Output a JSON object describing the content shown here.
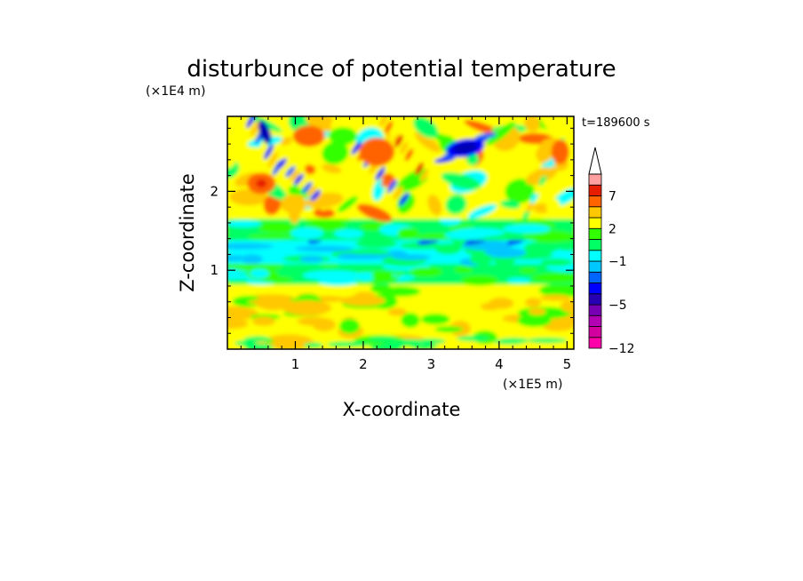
{
  "chart_data": {
    "type": "heatmap",
    "title": "disturbunce of potential temperature",
    "time_label": "t=189600 s",
    "xlabel": "X-coordinate",
    "ylabel": "Z-coordinate",
    "x_unit": "(×1E5 m)",
    "y_unit": "(×1E4 m)",
    "xlim": [
      0,
      5.1
    ],
    "ylim": [
      0,
      2.95
    ],
    "x_ticks": [
      "1",
      "2",
      "3",
      "4",
      "5"
    ],
    "x_tick_values": [
      1,
      2,
      3,
      4,
      5
    ],
    "y_ticks": [
      "1",
      "2"
    ],
    "y_tick_values": [
      1,
      2
    ],
    "colorbar": {
      "tick_labels": [
        "7",
        "2",
        "−1",
        "−5",
        "−12"
      ],
      "tick_values": [
        7,
        2,
        -1,
        -5,
        -12
      ],
      "levels": [
        -12,
        -10,
        -8,
        -6,
        -5,
        -4,
        -3,
        -2,
        -1,
        0,
        1,
        2,
        3,
        5,
        7,
        9,
        11
      ],
      "colors": [
        "#ff00a8",
        "#d2009e",
        "#b400b4",
        "#7800b4",
        "#2800b4",
        "#0000ff",
        "#0064ff",
        "#00c8ff",
        "#00ffff",
        "#00ff64",
        "#32ff00",
        "#ffff00",
        "#ffc800",
        "#ff6400",
        "#e61e00",
        "#ffa0a0"
      ],
      "extend": "max"
    },
    "field_description_regions": [
      {
        "z_range": [
          0,
          0.85
        ],
        "dominant_value": "0 to 2"
      },
      {
        "z_range": [
          0.85,
          1.1
        ],
        "dominant_value": "0"
      },
      {
        "z_range": [
          1.1,
          1.4
        ],
        "dominant_value": "-1"
      },
      {
        "z_range": [
          1.4,
          2.95
        ],
        "dominant_value": "-5 to 9"
      }
    ]
  }
}
